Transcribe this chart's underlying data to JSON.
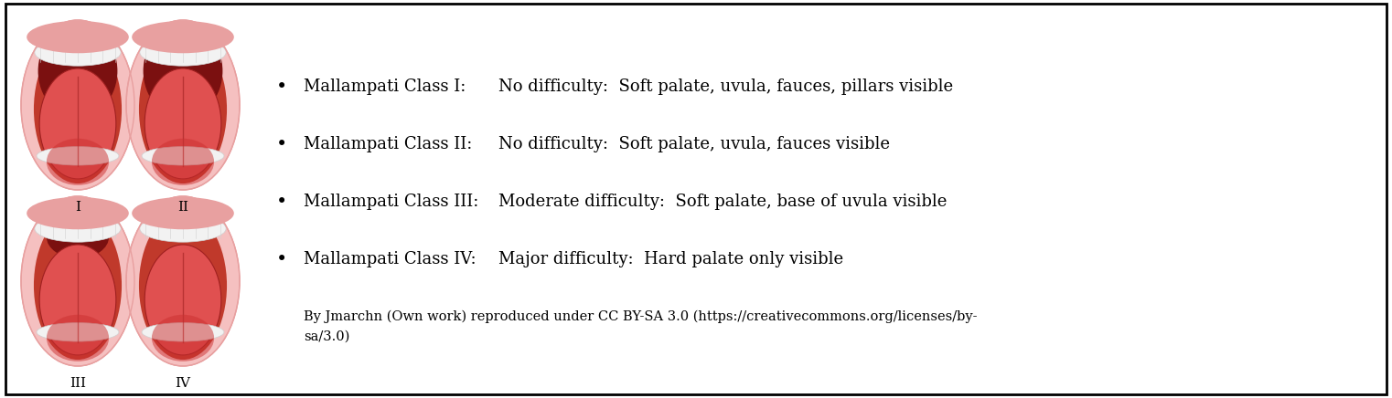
{
  "background_color": "#ffffff",
  "border_color": "#000000",
  "text_color": "#000000",
  "bullet_points": [
    {
      "label": "Mallampati Class I:",
      "description": "No difficulty:  Soft palate, uvula, fauces, pillars visible"
    },
    {
      "label": "Mallampati Class II:",
      "description": "No difficulty:  Soft palate, uvula, fauces visible"
    },
    {
      "label": "Mallampati Class III:",
      "description": "Moderate difficulty:  Soft palate, base of uvula visible"
    },
    {
      "label": "Mallampati Class IV:",
      "description": "Major difficulty:  Hard palate only visible"
    }
  ],
  "attribution_line1": "By Jmarchn (Own work) reproduced under CC BY-SA 3.0 (https://creativecommons.org/licenses/by-",
  "attribution_line2": "sa/3.0)",
  "roman_numerals": [
    "I",
    "II",
    "III",
    "IV"
  ],
  "font_size_bullet": 13.0,
  "font_size_attr": 10.5,
  "font_size_roman": 11,
  "colors": {
    "outer_face": "#f5c0c0",
    "outer_face_edge": "#e8a0a0",
    "mouth_bg": "#c0392b",
    "throat_dark": "#7b1010",
    "tongue_light": "#e05050",
    "tongue_mid": "#cc3030",
    "tongue_dark": "#a02020",
    "teeth_white": "#f2f2f2",
    "teeth_edge": "#d0d0d0",
    "lip_upper": "#e8a0a0",
    "uvula": "#801010",
    "pillar_left": "#901818",
    "pillar_right": "#901818"
  }
}
